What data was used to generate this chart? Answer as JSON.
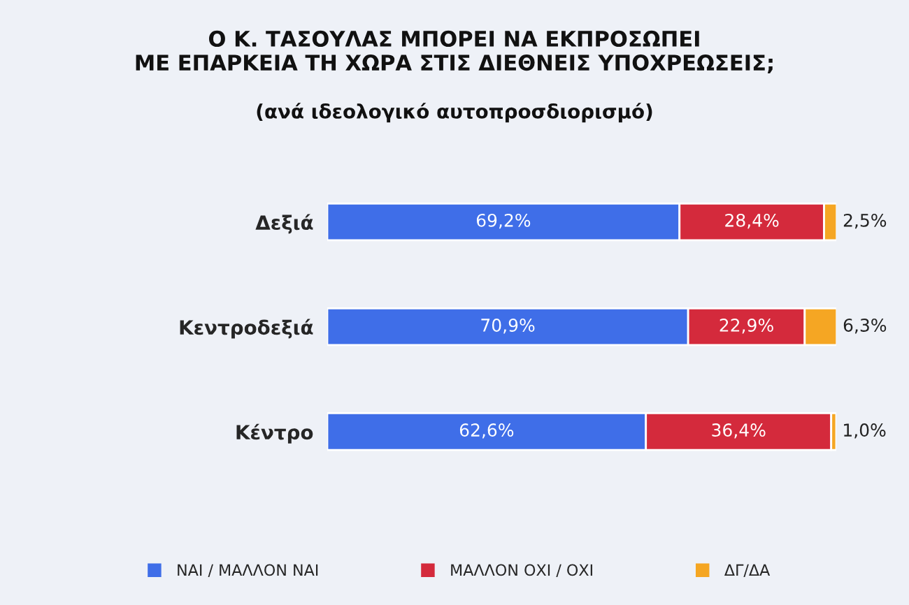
{
  "chart_data": {
    "type": "bar",
    "orientation": "horizontal",
    "stacked": true,
    "title": "Ο Κ. ΤΑΣΟΥΛΑΣ ΜΠΟΡΕΙ ΝΑ ΕΚΠΡΟΣΩΠΕΙ\nΜΕ ΕΠΑΡΚΕΙΑ ΤΗ ΧΩΡΑ ΣΤΙΣ ΔΙΕΘΝΕΙΣ ΥΠΟΧΡΕΩΣΕΙΣ;",
    "subtitle": "(ανά ιδεολογικό αυτοπροσδιορισμό)",
    "categories": [
      "Δεξιά",
      "Κεντροδεξιά",
      "Κέντρο"
    ],
    "series": [
      {
        "name": "ΝΑΙ / ΜΑΛΛΟΝ ΝΑΙ",
        "color": "#3f6ee8",
        "values": [
          69.2,
          70.9,
          62.6
        ],
        "value_labels": [
          "69,2%",
          "70,9%",
          "62,6%"
        ]
      },
      {
        "name": "ΜΑΛΛΟΝ ΟΧΙ / ΟΧΙ",
        "color": "#d42a3c",
        "values": [
          28.4,
          22.9,
          36.4
        ],
        "value_labels": [
          "28,4%",
          "22,9%",
          "36,4%"
        ]
      },
      {
        "name": "ΔΓ/ΔΑ",
        "color": "#f5a623",
        "values": [
          2.5,
          6.3,
          1.0
        ],
        "value_labels": [
          "2,5%",
          "6,3%",
          "1,0%"
        ]
      }
    ],
    "xlim": [
      0,
      100
    ],
    "tick_labels": "y",
    "grid": false,
    "legend": "bottom"
  }
}
